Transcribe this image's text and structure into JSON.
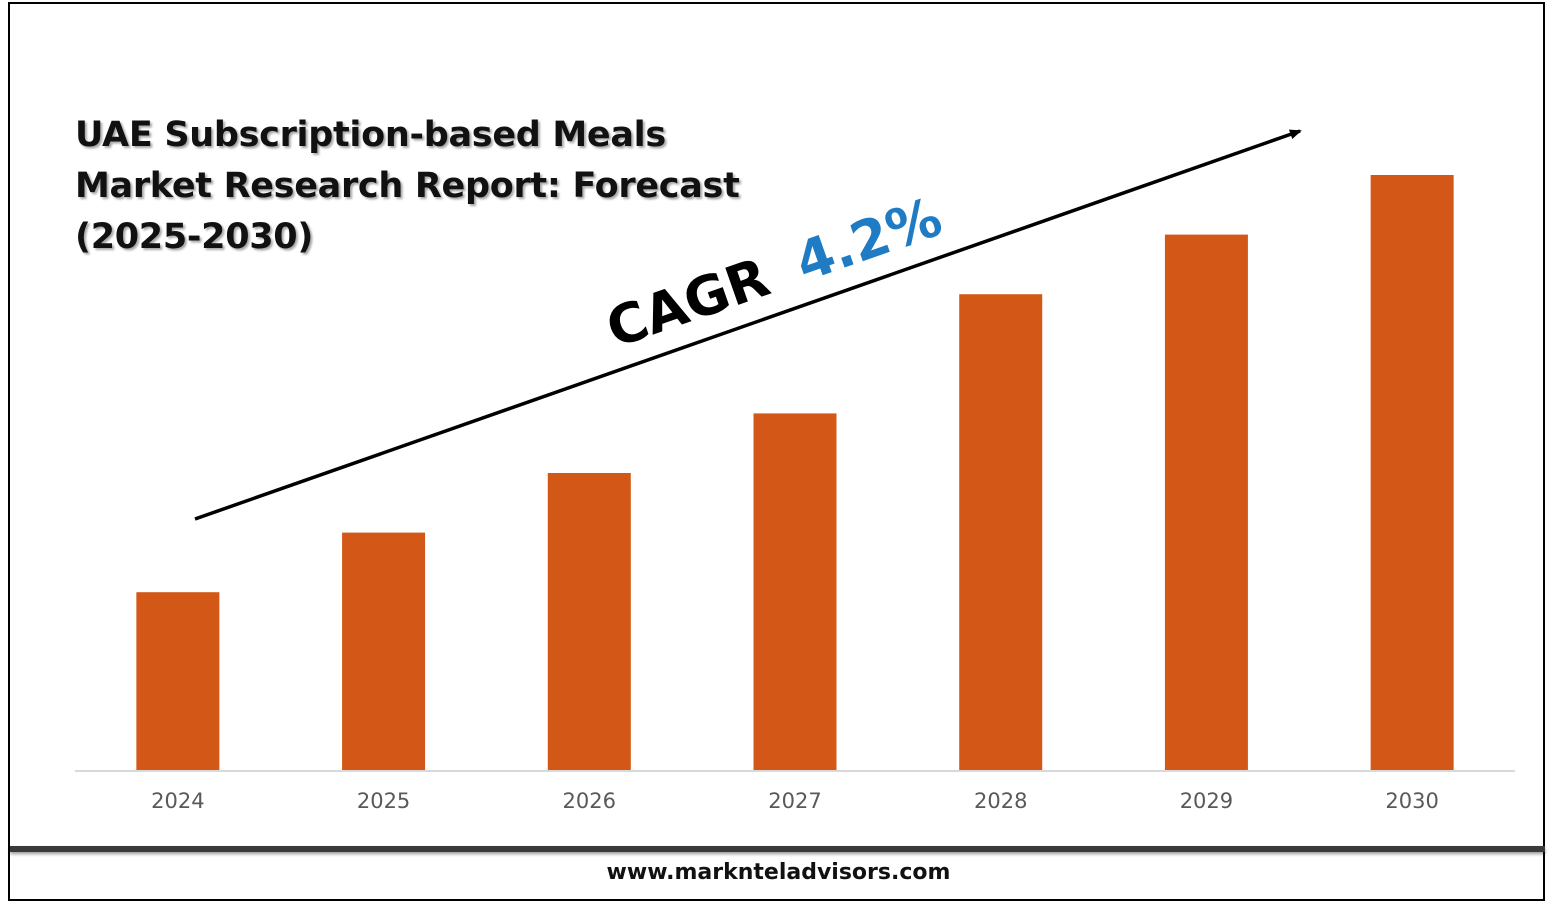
{
  "title_lines": [
    "UAE Subscription-based Meals",
    "Market Research Report: Forecast",
    "(2025-2030)"
  ],
  "cagr": {
    "label": "CAGR",
    "value": "4.2%"
  },
  "footer": {
    "url": "www.marknteladvisors.com"
  },
  "colors": {
    "bar": "#d35818",
    "cagr_value": "#1f7bc4",
    "axis": "#d9d9d9",
    "arrow": "#000000"
  },
  "chart_data": {
    "type": "bar",
    "title": "UAE Subscription-based Meals Market Research Report: Forecast (2025-2030)",
    "categories": [
      "2024",
      "2025",
      "2026",
      "2027",
      "2028",
      "2029",
      "2030"
    ],
    "values": [
      30,
      40,
      50,
      60,
      80,
      90,
      100
    ],
    "value_scale": "relative, no printed values",
    "ylim": [
      0,
      100
    ],
    "grid": false,
    "legend": "none",
    "annotation": "CAGR 4.2%"
  }
}
